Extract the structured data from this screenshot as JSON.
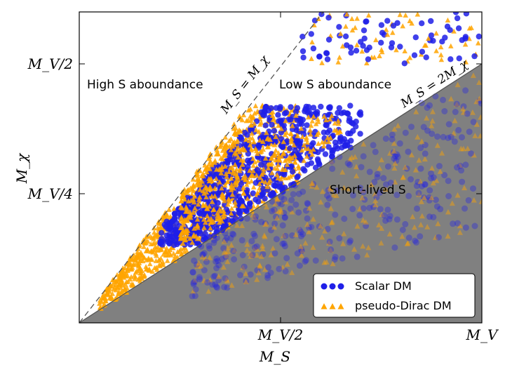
{
  "chart_data": {
    "type": "scatter",
    "title": "",
    "xlabel": "M_S",
    "ylabel": "M_χ",
    "xlim": [
      0,
      1
    ],
    "ylim": [
      0,
      0.6
    ],
    "grid": false,
    "legend_position": "bottom-right",
    "x_ticks": [
      {
        "value": 0.5,
        "label": "M_V/2"
      },
      {
        "value": 1.0,
        "label": "M_V"
      }
    ],
    "y_ticks": [
      {
        "value": 0.25,
        "label": "M_V/4"
      },
      {
        "value": 0.5,
        "label": "M_V/2"
      }
    ],
    "series": [
      {
        "name": "Scalar DM",
        "marker": "circle",
        "color": "#1f1fe8",
        "region_note": "dense between M_S = M_χ and M_S = 2M_χ, faded below 2M_χ line"
      },
      {
        "name": "pseudo-Dirac DM",
        "marker": "triangle",
        "color": "#ffa500",
        "region_note": "dense from M_S = M_χ line down into shaded region"
      }
    ],
    "lines": [
      {
        "label": "M_S = M_χ",
        "equation": "y = x",
        "style": "dashed"
      },
      {
        "label": "M_S = 2M_χ",
        "equation": "y = x/2",
        "style": "solid"
      }
    ],
    "shaded_region": {
      "label": "Short-lived S",
      "condition": "M_χ < M_S/2"
    },
    "annotations": {
      "high_s": "High S aboundance",
      "low_s": "Low S aboundance",
      "short_lived": "Short-lived S"
    }
  },
  "colors": {
    "scalar": "#1f1fe8",
    "dirac": "#ffa500",
    "shade": "#808080"
  }
}
